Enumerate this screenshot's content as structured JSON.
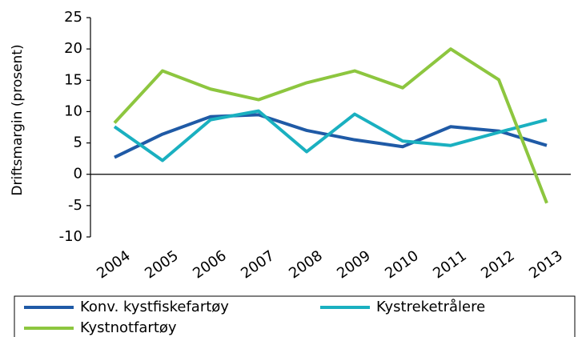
{
  "chart_data": {
    "type": "line",
    "y_label": "Driftsmargin (prosent)",
    "categories": [
      "2004",
      "2005",
      "2006",
      "2007",
      "2008",
      "2009",
      "2010",
      "2011",
      "2012",
      "2013"
    ],
    "series": [
      {
        "name": "Konv. kystfiskefartøy",
        "color": "#1f5aa6",
        "values": [
          2.7,
          6.4,
          9.2,
          9.5,
          7.0,
          5.5,
          4.4,
          7.6,
          6.9,
          4.6
        ]
      },
      {
        "name": "Kystreketrålere",
        "color": "#1ab0c0",
        "values": [
          7.6,
          2.2,
          8.7,
          10.1,
          3.6,
          9.6,
          5.3,
          4.6,
          6.7,
          8.7
        ]
      },
      {
        "name": "Kystnotfartøy",
        "color": "#8dc63f",
        "values": [
          8.2,
          16.5,
          13.6,
          11.9,
          14.6,
          16.5,
          13.8,
          20.0,
          15.1,
          -4.6
        ]
      }
    ],
    "ylim": [
      -10,
      25
    ],
    "yticks": [
      -10,
      -5,
      0,
      5,
      10,
      15,
      20,
      25
    ]
  }
}
